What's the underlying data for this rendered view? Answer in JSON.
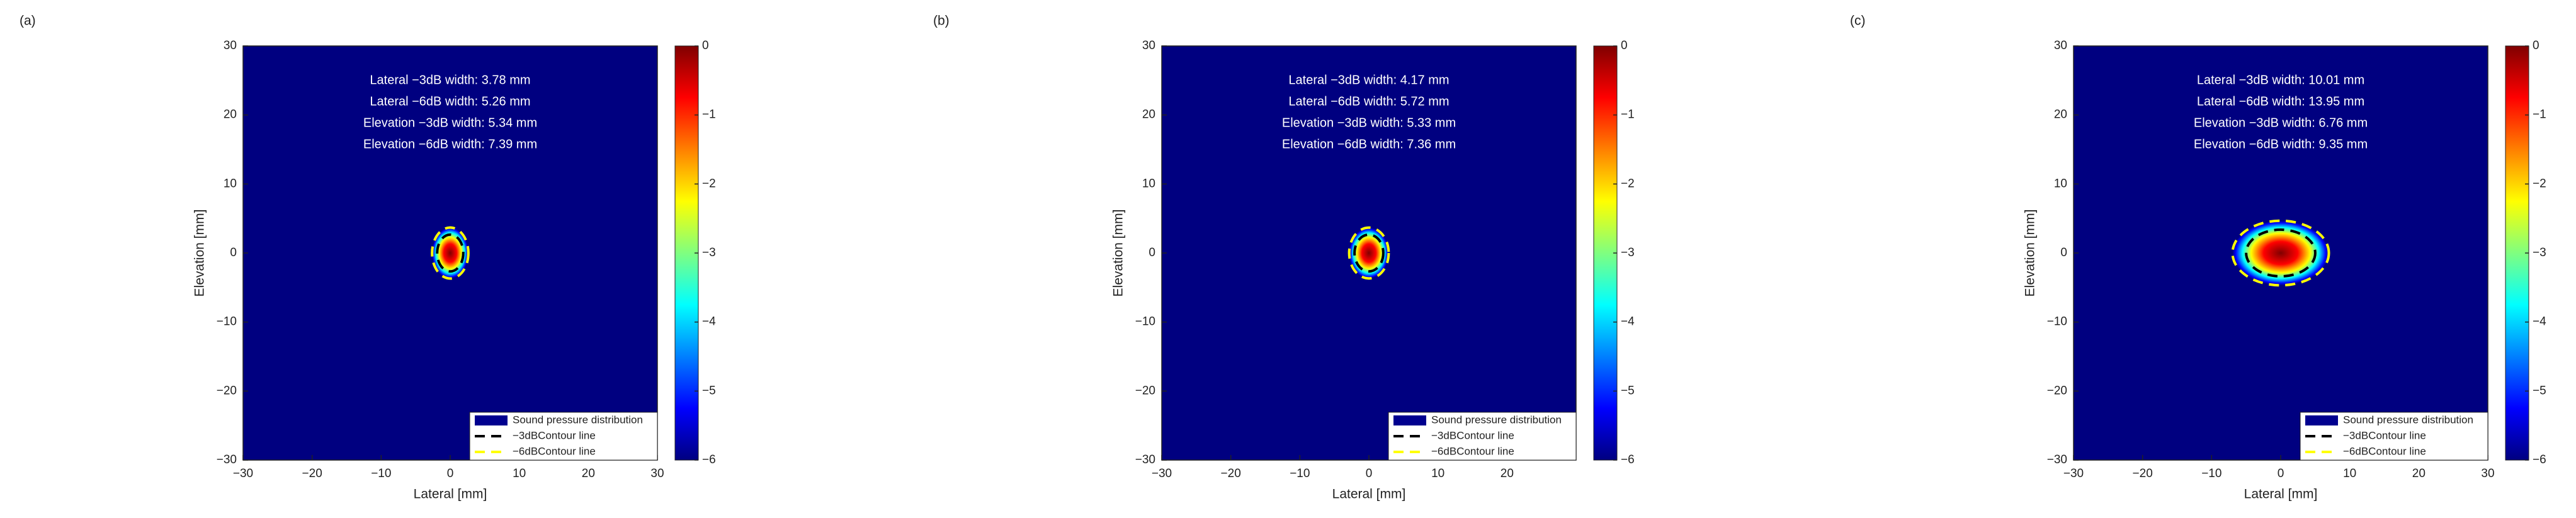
{
  "chart_data": [
    {
      "type": "heatmap",
      "panel_label": "(a)",
      "xlabel": "Lateral [mm]",
      "ylabel": "Elevation [mm]",
      "xlim": [
        -30,
        30
      ],
      "ylim": [
        -30,
        30
      ],
      "xticks": [
        {
          "value": -30,
          "label": "−30"
        },
        {
          "value": -20,
          "label": "−20"
        },
        {
          "value": -10,
          "label": "−10"
        },
        0,
        10,
        20,
        30
      ],
      "yticks": [
        {
          "value": -30,
          "label": "−30"
        },
        {
          "value": -20,
          "label": "−20"
        },
        {
          "value": -10,
          "label": "−10"
        },
        0,
        10,
        20,
        30
      ],
      "colormap": "jet",
      "clim": [
        -6,
        0
      ],
      "cticks": [
        {
          "value": -6,
          "label": "−6"
        },
        {
          "value": -5,
          "label": "−5"
        },
        {
          "value": -4,
          "label": "−4"
        },
        {
          "value": -3,
          "label": "−3"
        },
        {
          "value": -2,
          "label": "−2"
        },
        {
          "value": -1,
          "label": "−1"
        },
        0
      ],
      "annotations": [
        "Lateral −3dB width: 3.78 mm",
        "Lateral −6dB width: 5.26 mm",
        "Elevation −3dB width: 5.34 mm",
        "Elevation −6dB width: 7.39 mm"
      ],
      "legend": {
        "position": "lower right",
        "entries": [
          {
            "name": "Sound pressure distribution",
            "color": "#00008f"
          },
          {
            "name": "−3dBContour line",
            "color": "#000000"
          },
          {
            "name": "−6dBContour line",
            "color": "#ffff00"
          }
        ]
      }
    },
    {
      "type": "heatmap",
      "panel_label": "(b)",
      "xlabel": "Lateral [mm]",
      "ylabel": "Elevation [mm]",
      "xlim": [
        -30,
        30
      ],
      "ylim": [
        -30,
        30
      ],
      "xticks": [
        {
          "value": -30,
          "label": "−30"
        },
        {
          "value": -20,
          "label": "−20"
        },
        {
          "value": -10,
          "label": "−10"
        },
        0,
        10,
        20
      ],
      "yticks": [
        {
          "value": -30,
          "label": "−30"
        },
        {
          "value": -20,
          "label": "−20"
        },
        {
          "value": -10,
          "label": "−10"
        },
        0,
        10,
        20,
        30
      ],
      "colormap": "jet",
      "clim": [
        -6,
        0
      ],
      "cticks": [
        {
          "value": -6,
          "label": "−6"
        },
        {
          "value": -5,
          "label": "−5"
        },
        {
          "value": -4,
          "label": "−4"
        },
        {
          "value": -3,
          "label": "−3"
        },
        {
          "value": -2,
          "label": "−2"
        },
        {
          "value": -1,
          "label": "−1"
        },
        0
      ],
      "annotations": [
        "Lateral −3dB width: 4.17 mm",
        "Lateral −6dB width: 5.72 mm",
        "Elevation −3dB width: 5.33 mm",
        "Elevation −6dB width: 7.36 mm"
      ],
      "legend": {
        "position": "lower right",
        "entries": [
          {
            "name": "Sound pressure distribution",
            "color": "#00008f"
          },
          {
            "name": "−3dBContour line",
            "color": "#000000"
          },
          {
            "name": "−6dBContour line",
            "color": "#ffff00"
          }
        ]
      }
    },
    {
      "type": "heatmap",
      "panel_label": "(c)",
      "xlabel": "Lateral [mm]",
      "ylabel": "Elevation [mm]",
      "xlim": [
        -30,
        30
      ],
      "ylim": [
        -30,
        30
      ],
      "xticks": [
        {
          "value": -30,
          "label": "−30"
        },
        {
          "value": -20,
          "label": "−20"
        },
        {
          "value": -10,
          "label": "−10"
        },
        0,
        10,
        20,
        30
      ],
      "yticks": [
        {
          "value": -30,
          "label": "−30"
        },
        {
          "value": -20,
          "label": "−20"
        },
        {
          "value": -10,
          "label": "−10"
        },
        0,
        10,
        20,
        30
      ],
      "colormap": "jet",
      "clim": [
        -6,
        0
      ],
      "cticks": [
        {
          "value": -6,
          "label": "−6"
        },
        {
          "value": -5,
          "label": "−5"
        },
        {
          "value": -4,
          "label": "−4"
        },
        {
          "value": -3,
          "label": "−3"
        },
        {
          "value": -2,
          "label": "−2"
        },
        {
          "value": -1,
          "label": "−1"
        },
        0
      ],
      "annotations": [
        "Lateral −3dB width: 10.01 mm",
        "Lateral −6dB width: 13.95 mm",
        "Elevation −3dB width: 6.76 mm",
        "Elevation −6dB width: 9.35 mm"
      ],
      "legend": {
        "position": "lower right",
        "entries": [
          {
            "name": "Sound pressure distribution",
            "color": "#00008f"
          },
          {
            "name": "−3dBContour line",
            "color": "#000000"
          },
          {
            "name": "−6dBContour line",
            "color": "#ffff00"
          }
        ]
      }
    }
  ]
}
